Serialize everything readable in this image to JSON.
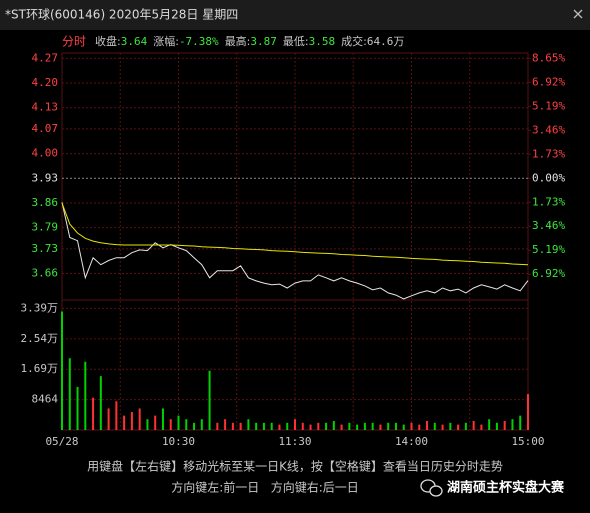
{
  "header": {
    "title": "*ST环球(600146) 2020年5月28日 星期四"
  },
  "info": {
    "mode": "分时",
    "items": [
      {
        "label": "收盘:",
        "value": "3.64",
        "color": "#3ce63c"
      },
      {
        "label": "涨幅:",
        "value": "-7.38%",
        "color": "#3ce63c"
      },
      {
        "label": "最高:",
        "value": "3.87",
        "color": "#3ce63c"
      },
      {
        "label": "最低:",
        "value": "3.58",
        "color": "#3ce63c"
      },
      {
        "label": "成交:",
        "value": "64.6万",
        "color": "#c8c8c8"
      }
    ]
  },
  "chart_data": [
    {
      "type": "line",
      "x": [
        0,
        4,
        8,
        12,
        16,
        20,
        24,
        28,
        32,
        36,
        40,
        44,
        48,
        52,
        56,
        60,
        64,
        68,
        72,
        76,
        80,
        84,
        88,
        92,
        96,
        100,
        104,
        108,
        112,
        116,
        120,
        124,
        128,
        132,
        136,
        140,
        144,
        148,
        152,
        156,
        160,
        164,
        168,
        172,
        176,
        180,
        184,
        188,
        192,
        196,
        200,
        204,
        208,
        212,
        216,
        220,
        224,
        228,
        232,
        236,
        240
      ],
      "series": [
        {
          "color": "#e6e6e6",
          "values": [
            3.862,
            3.762,
            3.753,
            3.648,
            3.705,
            3.685,
            3.697,
            3.705,
            3.705,
            3.719,
            3.727,
            3.725,
            3.747,
            3.733,
            3.742,
            3.733,
            3.725,
            3.705,
            3.685,
            3.648,
            3.668,
            3.668,
            3.668,
            3.682,
            3.648,
            3.639,
            3.633,
            3.628,
            3.63,
            3.619,
            3.633,
            3.639,
            3.639,
            3.656,
            3.648,
            3.639,
            3.648,
            3.639,
            3.633,
            3.625,
            3.614,
            3.619,
            3.605,
            3.599,
            3.588,
            3.597,
            3.605,
            3.611,
            3.605,
            3.619,
            3.611,
            3.616,
            3.605,
            3.619,
            3.628,
            3.622,
            3.616,
            3.628,
            3.619,
            3.611,
            3.64
          ]
        },
        {
          "color": "#e6e600",
          "values": [
            3.86,
            3.8,
            3.775,
            3.76,
            3.752,
            3.747,
            3.744,
            3.742,
            3.741,
            3.741,
            3.741,
            3.741,
            3.741,
            3.741,
            3.741,
            3.74,
            3.739,
            3.738,
            3.736,
            3.735,
            3.734,
            3.733,
            3.731,
            3.73,
            3.729,
            3.728,
            3.727,
            3.725,
            3.724,
            3.723,
            3.722,
            3.72,
            3.719,
            3.718,
            3.717,
            3.716,
            3.714,
            3.713,
            3.712,
            3.711,
            3.709,
            3.708,
            3.707,
            3.706,
            3.705,
            3.703,
            3.702,
            3.701,
            3.7,
            3.698,
            3.697,
            3.696,
            3.695,
            3.694,
            3.692,
            3.691,
            3.69,
            3.689,
            3.687,
            3.686,
            3.685
          ]
        }
      ],
      "xlim": [
        0,
        240
      ],
      "ylim": [
        3.585,
        4.285
      ],
      "yticks": [
        4.27,
        {
          "value": 4.2,
          "label": "4.20"
        },
        4.13,
        4.07,
        {
          "value": 4,
          "label": "4.00"
        },
        3.93,
        3.86,
        3.79,
        3.73,
        3.66
      ],
      "y2lim": [
        -8.779,
        9.033
      ],
      "y2ticks": [
        {
          "value": 8.65,
          "label": "8.65%"
        },
        {
          "value": 6.92,
          "label": "6.92%"
        },
        {
          "value": 5.19,
          "label": "5.19%"
        },
        {
          "value": 3.46,
          "label": "3.46%"
        },
        {
          "value": 1.73,
          "label": "1.73%"
        },
        {
          "value": 0,
          "label": "0.00%"
        },
        {
          "value": -1.73,
          "label": "1.73%"
        },
        {
          "value": -3.46,
          "label": "3.46%"
        },
        {
          "value": -5.19,
          "label": "5.19%"
        },
        {
          "value": -6.92,
          "label": "6.92%"
        }
      ],
      "grid": true
    },
    {
      "type": "bar",
      "x": [
        0,
        4,
        8,
        12,
        16,
        20,
        24,
        28,
        32,
        36,
        40,
        44,
        48,
        52,
        56,
        60,
        64,
        68,
        72,
        76,
        80,
        84,
        88,
        92,
        96,
        100,
        104,
        108,
        112,
        116,
        120,
        124,
        128,
        132,
        136,
        140,
        144,
        148,
        152,
        156,
        160,
        164,
        168,
        172,
        176,
        180,
        184,
        188,
        192,
        196,
        200,
        204,
        208,
        212,
        216,
        220,
        224,
        228,
        232,
        236,
        240
      ],
      "values": [
        33000,
        20000,
        12000,
        19000,
        9000,
        15000,
        6000,
        8000,
        4000,
        5000,
        6000,
        3000,
        4000,
        6000,
        3000,
        4000,
        3000,
        2000,
        3000,
        16500,
        2000,
        3000,
        2000,
        2000,
        3000,
        2000,
        2000,
        2000,
        1500,
        2000,
        3000,
        2000,
        1500,
        2000,
        2000,
        2500,
        1500,
        2000,
        1500,
        2000,
        2000,
        1500,
        2000,
        2000,
        1500,
        2000,
        1500,
        2500,
        2000,
        1500,
        2000,
        1500,
        2000,
        2500,
        1500,
        3000,
        2000,
        2500,
        3000,
        4000,
        10000
      ],
      "up_color": "#ff3232",
      "down_color": "#00d200",
      "xlim": [
        0,
        240
      ],
      "ylim": [
        0,
        36200
      ],
      "yticks": [
        {
          "value": 33856,
          "label": "3.39万"
        },
        {
          "value": 25392,
          "label": "2.54万"
        },
        {
          "value": 16928,
          "label": "1.69万"
        },
        8464
      ],
      "xticks": [
        {
          "value": 0,
          "label": "05/28"
        },
        {
          "value": 30,
          "label": null
        },
        {
          "value": 60,
          "label": "10:30"
        },
        {
          "value": 90,
          "label": null
        },
        {
          "value": 120,
          "label": "11:30"
        },
        {
          "value": 150,
          "label": null
        },
        {
          "value": 180,
          "label": "14:00"
        },
        {
          "value": 210,
          "label": null
        },
        {
          "value": 240,
          "label": "15:00"
        }
      ],
      "grid": true
    }
  ],
  "footer": {
    "line1": "用键盘【左右键】移动光标至某一日K线，按【空格键】查看当日历史分时走势",
    "line2": "方向键左:前一日   方向键右:后一日",
    "watermark": "湖南硕主杯实盘大赛"
  }
}
